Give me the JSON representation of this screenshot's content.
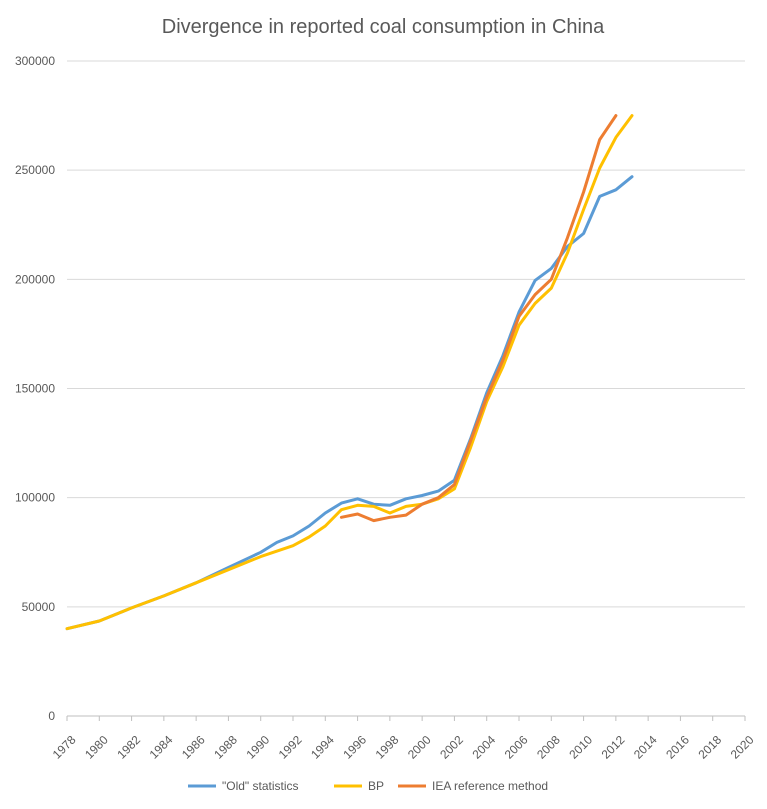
{
  "chart_data": {
    "type": "line",
    "title": "Divergence in reported coal consumption in China",
    "xlabel": "",
    "ylabel": "",
    "xlim": [
      1978,
      2020
    ],
    "ylim": [
      0,
      300000
    ],
    "x_ticks": [
      "1978",
      "1980",
      "1982",
      "1984",
      "1986",
      "1988",
      "1990",
      "1992",
      "1994",
      "1996",
      "1998",
      "2000",
      "2002",
      "2004",
      "2006",
      "2008",
      "2010",
      "2012",
      "2014",
      "2016",
      "2018",
      "2020"
    ],
    "y_ticks": [
      "0",
      "50000",
      "100000",
      "150000",
      "200000",
      "250000",
      "300000"
    ],
    "grid": "horizontal",
    "legend_position": "bottom",
    "series": [
      {
        "name": "\"Old\" statistics",
        "color": "#5B9BD5",
        "x": [
          1978,
          1980,
          1982,
          1984,
          1986,
          1988,
          1990,
          1991,
          1992,
          1993,
          1994,
          1995,
          1996,
          1997,
          1998,
          1999,
          2000,
          2001,
          2002,
          2003,
          2004,
          2005,
          2006,
          2007,
          2008,
          2009,
          2010,
          2011,
          2012,
          2013
        ],
        "y": [
          40000,
          43500,
          49500,
          55000,
          61000,
          68000,
          75000,
          79500,
          82500,
          87000,
          93000,
          97500,
          99500,
          97000,
          96500,
          99500,
          101000,
          103000,
          108000,
          127000,
          148000,
          165000,
          185000,
          199500,
          205000,
          215000,
          221000,
          238000,
          241000,
          247000
        ]
      },
      {
        "name": "BP",
        "color": "#FFC000",
        "x": [
          1978,
          1980,
          1982,
          1984,
          1986,
          1988,
          1990,
          1992,
          1993,
          1994,
          1995,
          1996,
          1997,
          1998,
          1999,
          2000,
          2001,
          2002,
          2003,
          2004,
          2005,
          2006,
          2007,
          2008,
          2009,
          2010,
          2011,
          2012,
          2013
        ],
        "y": [
          40000,
          43500,
          49500,
          55000,
          61000,
          67000,
          73000,
          78000,
          82000,
          87000,
          94500,
          96500,
          96000,
          93000,
          96000,
          97000,
          99500,
          104000,
          123000,
          144000,
          160000,
          179000,
          189000,
          196000,
          212000,
          232000,
          251000,
          265000,
          275000
        ]
      },
      {
        "name": "IEA reference method",
        "color": "#ED7D31",
        "x": [
          1995,
          1996,
          1997,
          1998,
          1999,
          2000,
          2001,
          2002,
          2003,
          2004,
          2005,
          2006,
          2007,
          2008,
          2009,
          2010,
          2011,
          2012
        ],
        "y": [
          91000,
          92500,
          89500,
          91000,
          92000,
          97000,
          100000,
          106000,
          126000,
          146000,
          163000,
          183000,
          193000,
          200000,
          219000,
          240000,
          264000,
          275000
        ]
      }
    ]
  }
}
